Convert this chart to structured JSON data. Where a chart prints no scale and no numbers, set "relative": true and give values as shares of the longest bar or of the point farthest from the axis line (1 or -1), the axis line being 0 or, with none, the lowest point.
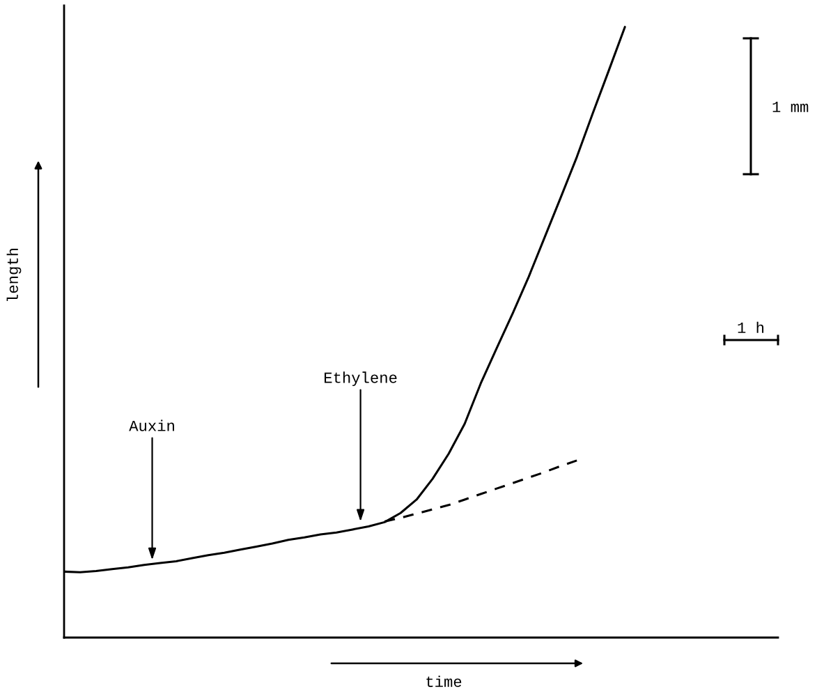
{
  "chart_data": {
    "type": "line",
    "relative": true,
    "xlabel": "time",
    "ylabel": "length",
    "categories": [
      null,
      null,
      null,
      null,
      null,
      null,
      null,
      null,
      null,
      null,
      null,
      null,
      null,
      null,
      null,
      null,
      null,
      null,
      null,
      null,
      null,
      null,
      null,
      null,
      null,
      null,
      null,
      null,
      null,
      null,
      null,
      null,
      null,
      null,
      null,
      null
    ],
    "series": [
      {
        "color": "#000000",
        "line_style": "solid",
        "values": [
          0.108,
          0.107,
          0.109,
          0.112,
          0.115,
          0.119,
          0.122,
          0.125,
          0.13,
          0.135,
          0.139,
          0.144,
          0.149,
          0.154,
          0.16,
          0.164,
          0.169,
          0.172,
          0.177,
          0.182,
          0.189,
          0.204,
          0.226,
          0.26,
          0.301,
          0.35,
          0.416,
          0.474,
          0.531,
          0.591,
          0.656,
          0.721,
          0.787,
          0.859,
          0.929,
          1
        ]
      },
      {
        "color": "#000000",
        "line_style": "dashed",
        "values": [
          null,
          null,
          null,
          null,
          null,
          null,
          null,
          null,
          null,
          null,
          null,
          null,
          null,
          null,
          null,
          null,
          null,
          null,
          null,
          null,
          0.19,
          0.196,
          0.203,
          0.21,
          0.217,
          0.226,
          0.235,
          0.244,
          0.253,
          0.262,
          0.271,
          0.281,
          0.29,
          null,
          null,
          null
        ]
      }
    ],
    "annotations": [
      "Auxin",
      "Ethylene",
      "1 mm",
      "1 h"
    ]
  }
}
